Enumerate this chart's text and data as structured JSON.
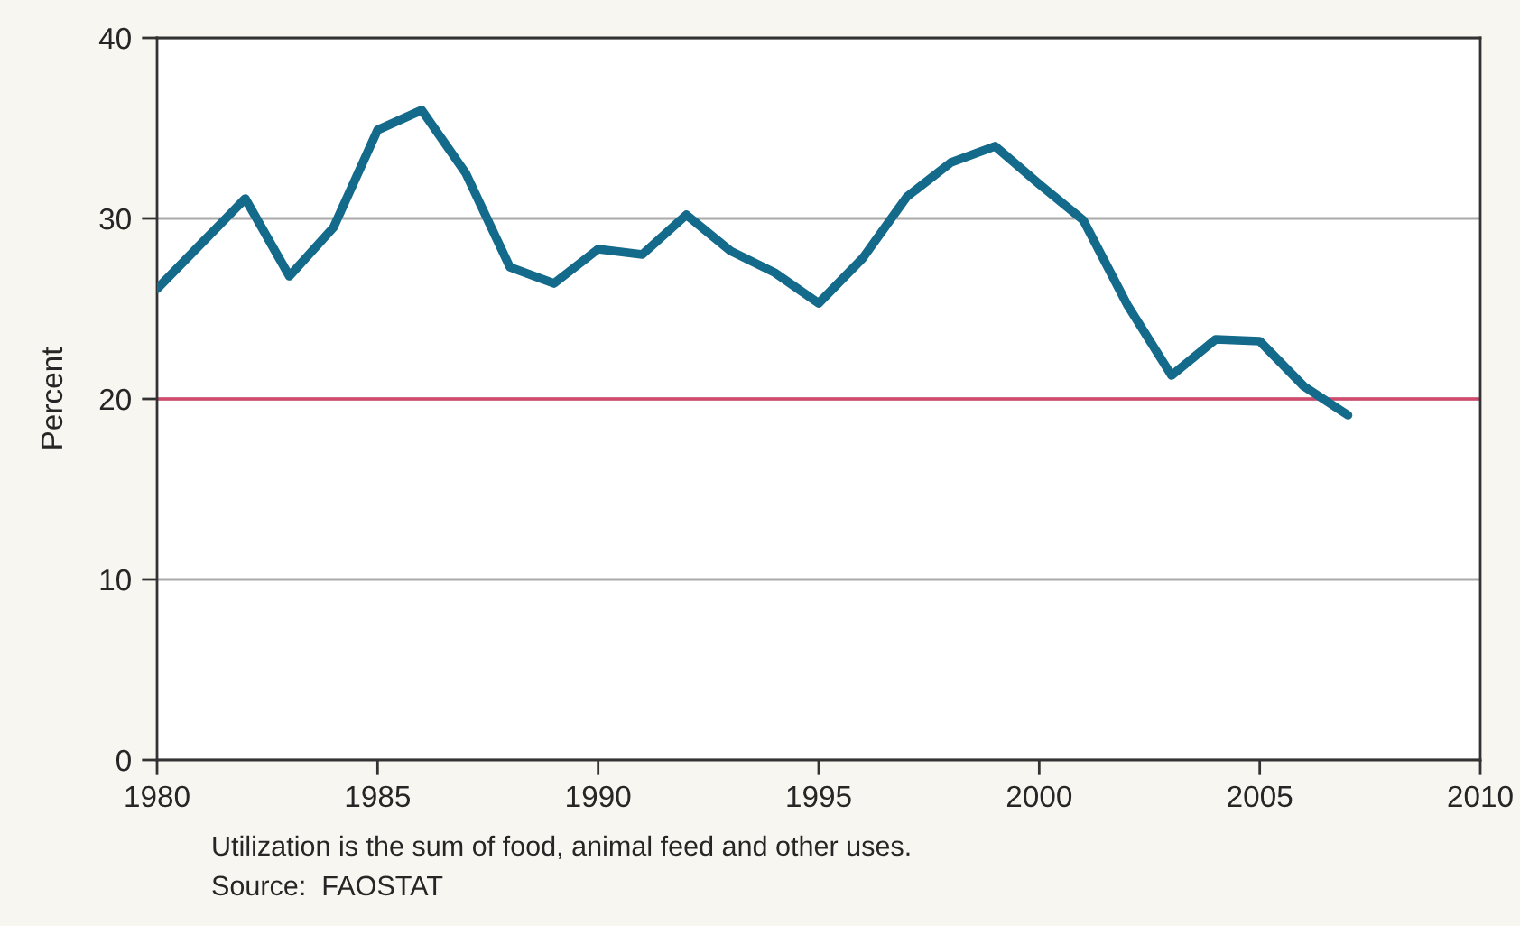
{
  "chart_data": {
    "type": "line",
    "ylabel": "Percent",
    "x": [
      1980,
      1981,
      1982,
      1983,
      1984,
      1985,
      1986,
      1987,
      1988,
      1989,
      1990,
      1991,
      1992,
      1993,
      1994,
      1995,
      1996,
      1997,
      1998,
      1999,
      2000,
      2001,
      2002,
      2003,
      2004,
      2005,
      2006,
      2007
    ],
    "series": [
      {
        "color": "#136a8a",
        "values": [
          26.1,
          28.6,
          31.1,
          26.8,
          29.5,
          34.9,
          36.0,
          32.5,
          27.3,
          26.4,
          28.3,
          28.0,
          30.2,
          28.2,
          27.0,
          25.3,
          27.8,
          31.2,
          33.1,
          34.0,
          31.9,
          29.9,
          25.2,
          21.3,
          23.3,
          23.2,
          20.7,
          19.1
        ]
      }
    ],
    "xlim": [
      1980,
      2010
    ],
    "xticks": [
      1980,
      1985,
      1990,
      1995,
      2000,
      2005,
      2010
    ],
    "ylim": [
      0,
      40
    ],
    "yticks": [
      0,
      10,
      20,
      30,
      40
    ],
    "grid": "y",
    "line_style": "solid",
    "marker": "none",
    "ref_lines": [
      {
        "axis": "y",
        "value": 20,
        "color": "#d04a6e"
      }
    ],
    "annotations": [
      "Utilization is the sum of food, animal feed and other uses.",
      "Source:  FAOSTAT"
    ]
  }
}
